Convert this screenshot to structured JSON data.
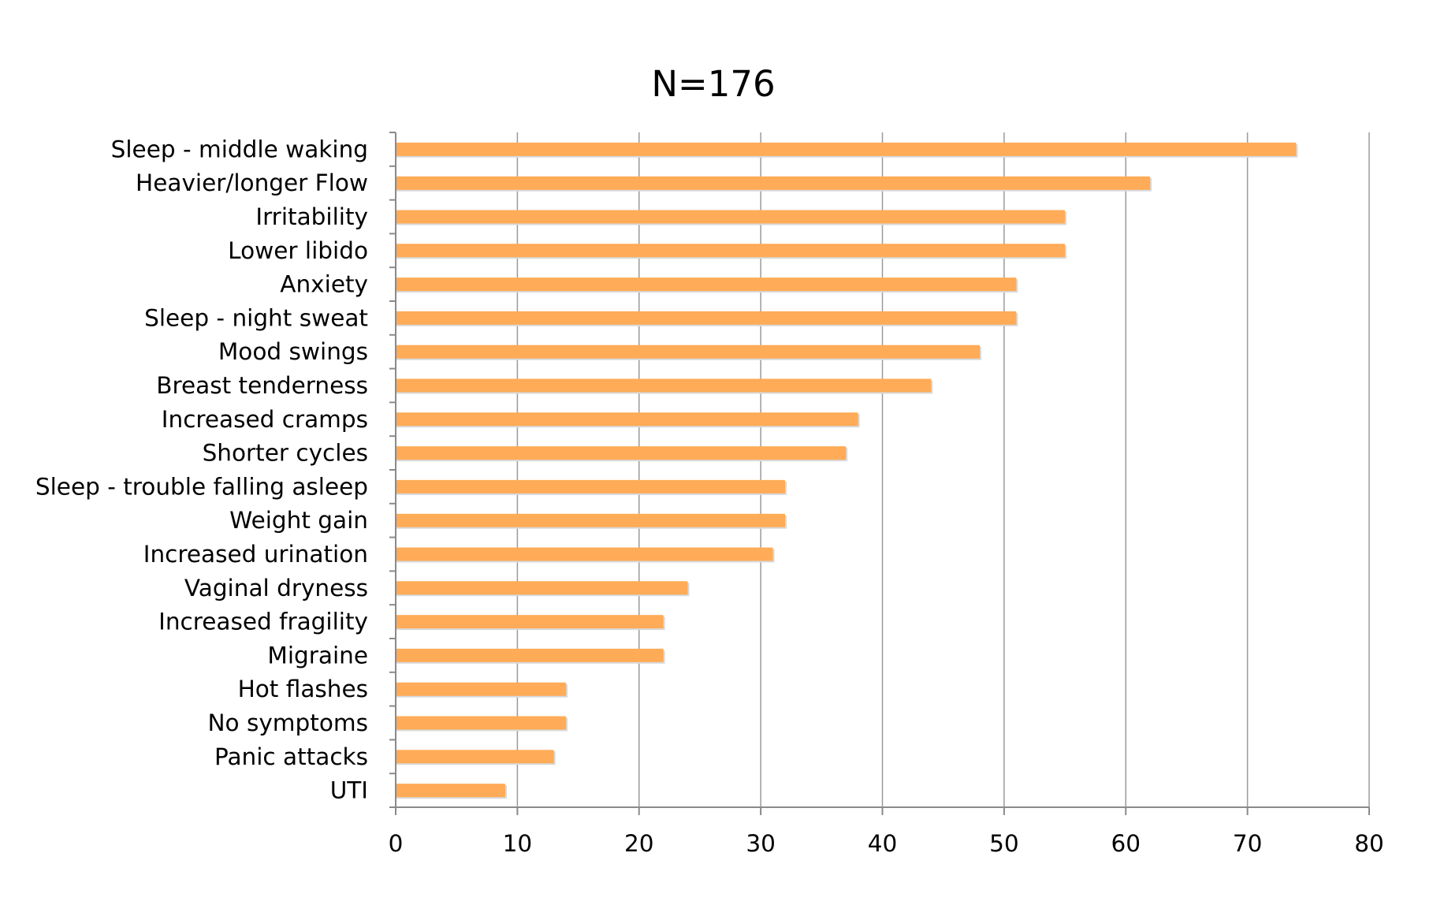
{
  "chart_data": {
    "type": "bar",
    "orientation": "horizontal",
    "title": "N=176",
    "xlabel": "",
    "ylabel": "",
    "xlim": [
      0,
      80
    ],
    "xticks": [
      0,
      10,
      20,
      30,
      40,
      50,
      60,
      70,
      80
    ],
    "grid": "vertical",
    "legend": "none",
    "bar_color": "#ffab57",
    "categories": [
      "Sleep - middle waking",
      "Heavier/longer Flow",
      "Irritability",
      "Lower libido",
      "Anxiety",
      "Sleep - night sweat",
      "Mood swings",
      "Breast tenderness",
      "Increased cramps",
      "Shorter cycles",
      "Sleep - trouble falling asleep",
      "Weight gain",
      "Increased urination",
      "Vaginal dryness",
      "Increased fragility",
      "Migraine",
      "Hot flashes",
      "No symptoms",
      "Panic attacks",
      "UTI"
    ],
    "values": [
      74,
      62,
      55,
      55,
      51,
      51,
      48,
      44,
      38,
      37,
      32,
      32,
      31,
      24,
      22,
      22,
      14,
      14,
      13,
      9
    ]
  }
}
